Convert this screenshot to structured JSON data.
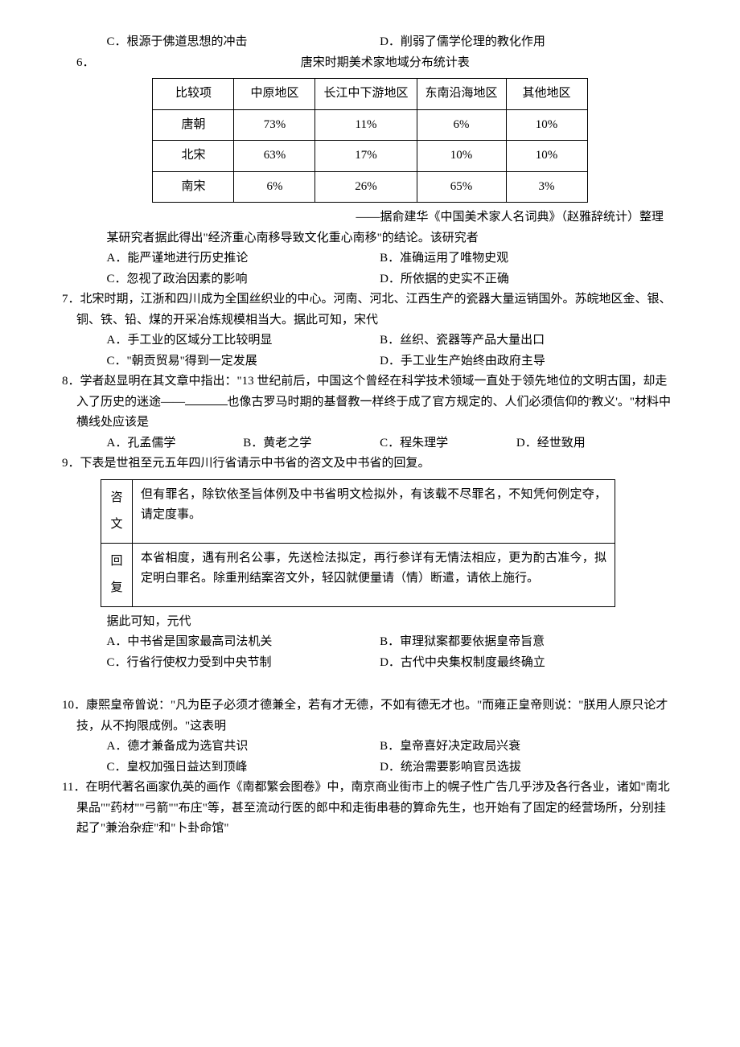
{
  "q5_tail": {
    "optC": "C．根源于佛道思想的冲击",
    "optD": "D．削弱了儒学伦理的教化作用"
  },
  "q6": {
    "num": "6．",
    "caption": "唐宋时期美术家地域分布统计表",
    "table": {
      "columns": [
        "比较项",
        "中原地区",
        "长江中下游地区",
        "东南沿海地区",
        "其他地区"
      ],
      "rows": [
        [
          "唐朝",
          "73%",
          "11%",
          "6%",
          "10%"
        ],
        [
          "北宋",
          "63%",
          "17%",
          "10%",
          "10%"
        ],
        [
          "南宋",
          "6%",
          "26%",
          "65%",
          "3%"
        ]
      ],
      "col_widths": [
        "80px",
        "80px",
        "130px",
        "110px",
        "80px"
      ],
      "border_color": "#000000",
      "background_color": "#ffffff",
      "font_size": 15,
      "cell_align": "center"
    },
    "source": "——据俞建华《中国美术家人名词典》（赵雅辞统计）整理",
    "stem": "某研究者据此得出\"经济重心南移导致文化重心南移\"的结论。该研究者",
    "optA": "A．能严谨地进行历史推论",
    "optB": "B．准确运用了唯物史观",
    "optC": "C．忽视了政治因素的影响",
    "optD": "D．所依据的史实不正确"
  },
  "q7": {
    "num": "7．",
    "stem": "北宋时期，江浙和四川成为全国丝织业的中心。河南、河北、江西生产的瓷器大量运销国外。苏皖地区金、银、铜、铁、铅、煤的开采冶炼规模相当大。据此可知，宋代",
    "optA": "A．手工业的区域分工比较明显",
    "optB": "B．丝织、瓷器等产品大量出口",
    "optC": "C．\"朝贡贸易\"得到一定发展",
    "optD": "D．手工业生产始终由政府主导"
  },
  "q8": {
    "num": "8．",
    "stem_a": "学者赵显明在其文章中指出：\"13 世纪前后，中国这个曾经在科学技术领域一直处于领先地位的文明古国，却走入了历史的迷途——",
    "stem_b": "也像古罗马时期的基督教一样终于成了官方规定的、人们必须信仰的'教义'。\"材料中横线处应该是",
    "optA": "A．孔孟儒学",
    "optB": "B．黄老之学",
    "optC": "C．程朱理学",
    "optD": "D．经世致用"
  },
  "q9": {
    "num": "9．",
    "stem_top": "下表是世祖至元五年四川行省请示中书省的咨文及中书省的回复。",
    "box": {
      "rows": [
        {
          "label": "咨文",
          "text": "但有罪名，除钦依圣旨体例及中书省明文检拟外，有该载不尽罪名，不知凭何例定夺，请定度事。"
        },
        {
          "label": "回复",
          "text": "本省相度，遇有刑名公事，先送检法拟定，再行参详有无情法相应，更为酌古准今，拟定明白罪名。除重刑结案咨文外，轻囚就便量请（情）断遣，请依上施行。"
        }
      ],
      "border_color": "#000000",
      "background_color": "#ffffff",
      "font_size": 15
    },
    "stem_bot": "据此可知，元代",
    "optA": "A．中书省是国家最高司法机关",
    "optB": "B．审理狱案都要依据皇帝旨意",
    "optC": "C．行省行使权力受到中央节制",
    "optD": "D．古代中央集权制度最终确立"
  },
  "q10": {
    "num": "10．",
    "stem": "康熙皇帝曾说：\"凡为臣子必须才德兼全，若有才无德，不如有德无才也。\"而雍正皇帝则说：\"朕用人原只论才技，从不拘限成例。\"这表明",
    "optA": "A．德才兼备成为选官共识",
    "optB": "B．皇帝喜好决定政局兴衰",
    "optC": "C．皇权加强日益达到顶峰",
    "optD": "D．统治需要影响官员选拔"
  },
  "q11": {
    "num": "11．",
    "stem": "在明代著名画家仇英的画作《南都繁会图卷》中，南京商业街市上的幌子性广告几乎涉及各行各业，诸如\"南北果品\"\"药材\"\"弓箭\"\"布庄\"等，甚至流动行医的郎中和走街串巷的算命先生，也开始有了固定的经营场所，分别挂起了\"兼治杂症\"和\"卜卦命馆\""
  }
}
